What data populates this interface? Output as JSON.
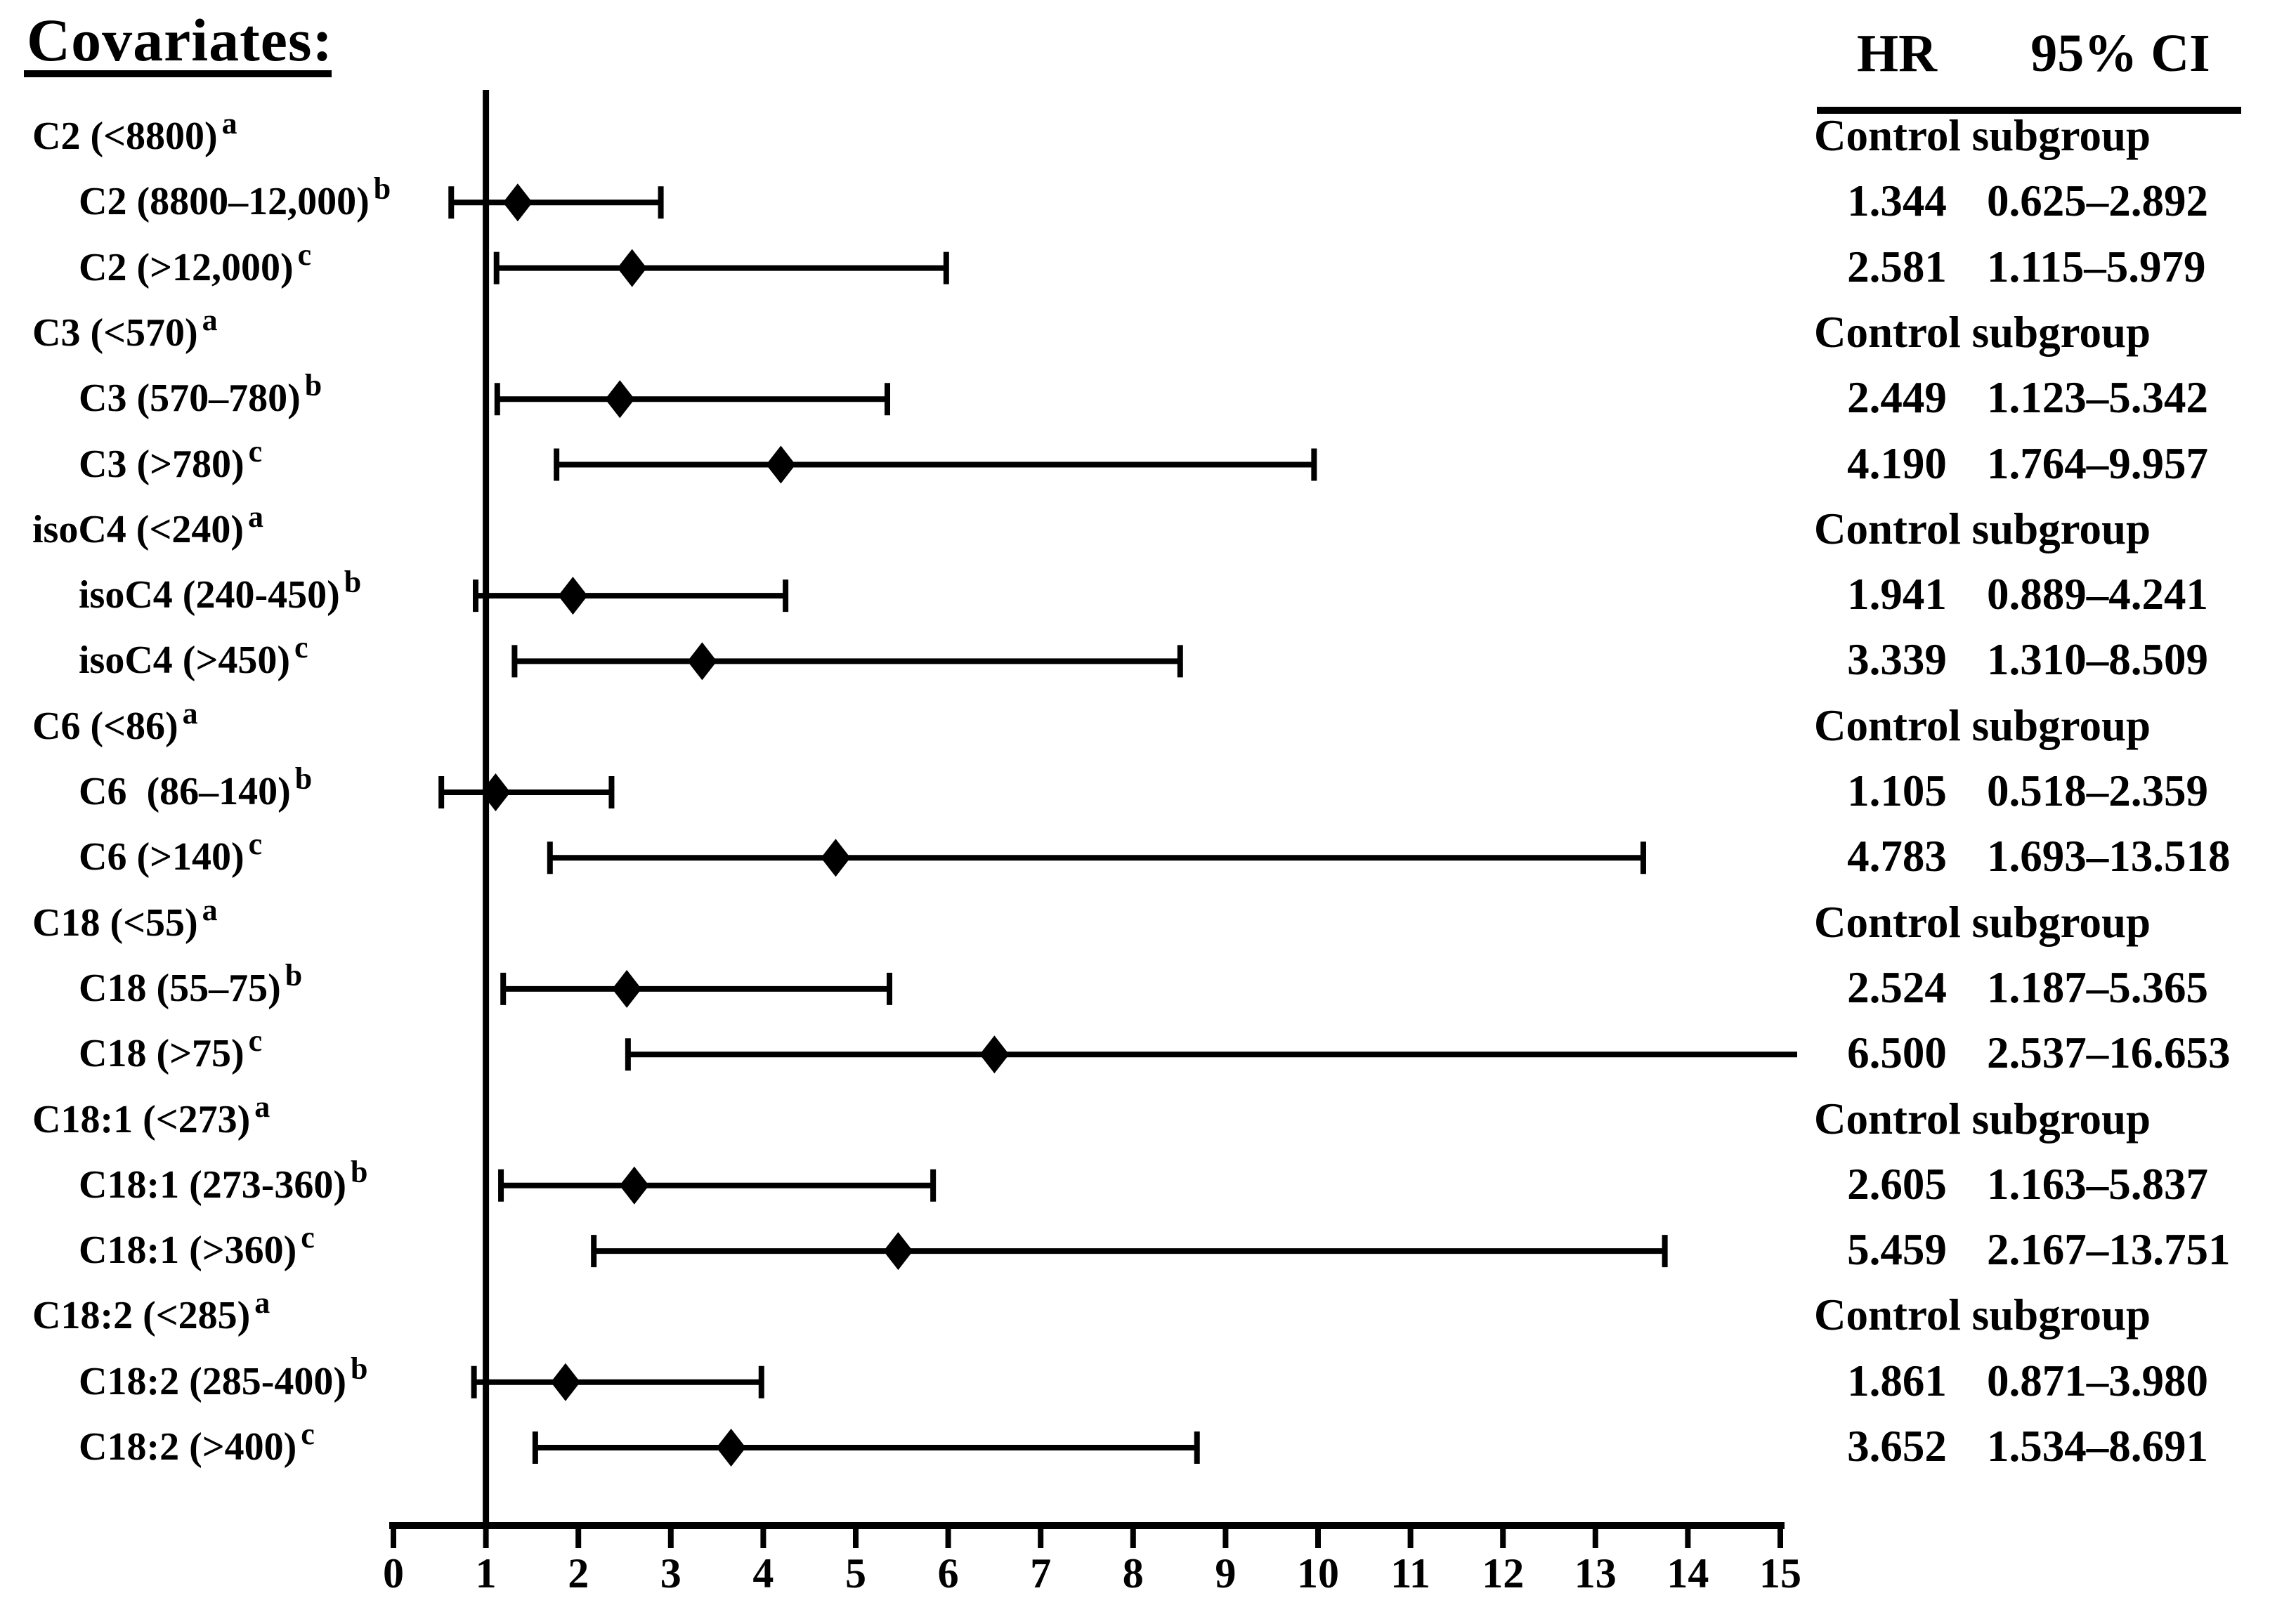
{
  "title": "Covariates:",
  "columns": {
    "hr": "HR",
    "ci": "95% CI"
  },
  "chart_data": {
    "type": "scatter",
    "subtype": "forest-plot",
    "title": "Covariates:",
    "xlabel": "",
    "xlim": [
      0,
      15
    ],
    "x_ticks": [
      0,
      1,
      2,
      3,
      4,
      5,
      6,
      7,
      8,
      9,
      10,
      11,
      12,
      13,
      14,
      15
    ],
    "reference_line_x": 1,
    "marker": "diamond",
    "grid": "off",
    "colors": {
      "foreground": "#000000",
      "background": "#ffffff"
    },
    "rows": [
      {
        "kind": "group",
        "label": "C2 (<8800)",
        "sup": "a",
        "right_text": "Control subgroup"
      },
      {
        "kind": "estimate",
        "label": "C2 (8800–12,000)",
        "sup": "b",
        "hr": 1.344,
        "ci_low": 0.625,
        "ci_high": 2.892,
        "hr_text": "1.344",
        "ci_text": "0.625–2.892"
      },
      {
        "kind": "estimate",
        "label": "C2 (>12,000)",
        "sup": "c",
        "hr": 2.581,
        "ci_low": 1.115,
        "ci_high": 5.979,
        "hr_text": "2.581",
        "ci_text": "1.115–5.979"
      },
      {
        "kind": "group",
        "label": "C3 (<570)",
        "sup": "a",
        "right_text": "Control subgroup"
      },
      {
        "kind": "estimate",
        "label": "C3 (570–780)",
        "sup": "b",
        "hr": 2.449,
        "ci_low": 1.123,
        "ci_high": 5.342,
        "hr_text": "2.449",
        "ci_text": "1.123–5.342"
      },
      {
        "kind": "estimate",
        "label": "C3 (>780)",
        "sup": "c",
        "hr": 4.19,
        "ci_low": 1.764,
        "ci_high": 9.957,
        "hr_text": "4.190",
        "ci_text": "1.764–9.957"
      },
      {
        "kind": "group",
        "label": "isoC4 (<240)",
        "sup": "a",
        "right_text": "Control subgroup"
      },
      {
        "kind": "estimate",
        "label": "isoC4 (240-450)",
        "sup": "b",
        "hr": 1.941,
        "ci_low": 0.889,
        "ci_high": 4.241,
        "hr_text": "1.941",
        "ci_text": "0.889–4.241"
      },
      {
        "kind": "estimate",
        "label": "isoC4 (>450)",
        "sup": "c",
        "hr": 3.339,
        "ci_low": 1.31,
        "ci_high": 8.509,
        "hr_text": "3.339",
        "ci_text": "1.310–8.509"
      },
      {
        "kind": "group",
        "label": "C6 (<86)",
        "sup": "a",
        "right_text": "Control subgroup"
      },
      {
        "kind": "estimate",
        "label": "C6  (86–140)",
        "sup": "b",
        "hr": 1.105,
        "ci_low": 0.518,
        "ci_high": 2.359,
        "hr_text": "1.105",
        "ci_text": "0.518–2.359"
      },
      {
        "kind": "estimate",
        "label": "C6 (>140)",
        "sup": "c",
        "hr": 4.783,
        "ci_low": 1.693,
        "ci_high": 13.518,
        "hr_text": "4.783",
        "ci_text": "1.693–13.518"
      },
      {
        "kind": "group",
        "label": "C18 (<55)",
        "sup": "a",
        "right_text": "Control subgroup"
      },
      {
        "kind": "estimate",
        "label": "C18 (55–75)",
        "sup": "b",
        "hr": 2.524,
        "ci_low": 1.187,
        "ci_high": 5.365,
        "hr_text": "2.524",
        "ci_text": "1.187–5.365"
      },
      {
        "kind": "estimate",
        "label": "C18 (>75)",
        "sup": "c",
        "hr": 6.5,
        "ci_low": 2.537,
        "ci_high": 16.653,
        "hr_text": "6.500",
        "ci_text": "2.537–16.653"
      },
      {
        "kind": "group",
        "label": "C18:1 (<273)",
        "sup": "a",
        "right_text": "Control subgroup"
      },
      {
        "kind": "estimate",
        "label": "C18:1 (273-360)",
        "sup": "b",
        "hr": 2.605,
        "ci_low": 1.163,
        "ci_high": 5.837,
        "hr_text": "2.605",
        "ci_text": "1.163–5.837"
      },
      {
        "kind": "estimate",
        "label": "C18:1 (>360)",
        "sup": "c",
        "hr": 5.459,
        "ci_low": 2.167,
        "ci_high": 13.751,
        "hr_text": "5.459",
        "ci_text": "2.167–13.751"
      },
      {
        "kind": "group",
        "label": "C18:2 (<285)",
        "sup": "a",
        "right_text": "Control subgroup"
      },
      {
        "kind": "estimate",
        "label": "C18:2 (285-400)",
        "sup": "b",
        "hr": 1.861,
        "ci_low": 0.871,
        "ci_high": 3.98,
        "hr_text": "1.861",
        "ci_text": "0.871–3.980"
      },
      {
        "kind": "estimate",
        "label": "C18:2 (>400)",
        "sup": "c",
        "hr": 3.652,
        "ci_low": 1.534,
        "ci_high": 8.691,
        "hr_text": "3.652",
        "ci_text": "1.534–8.691"
      }
    ]
  }
}
